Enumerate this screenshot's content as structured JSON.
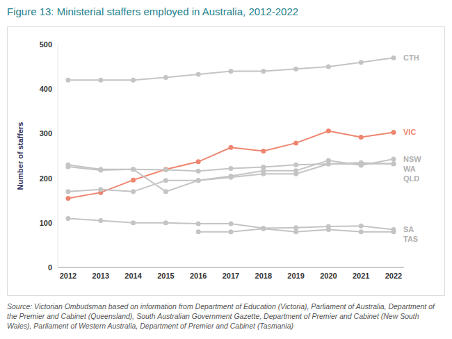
{
  "chart_data": {
    "type": "line",
    "title": "Figure 13: Ministerial staffers employed in Australia, 2012-2022",
    "y_label": "Number of staffers",
    "source": "Source: Victorian Ombudsman based on information from Department of Education (Victoria), Parliament of Australia, Department of the Premier and Cabinet (Queensland), South Australian Government Gazette, Department of Premier and Cabinet (New South Wales), Parliament of Western Australia, Department of Premier and Cabinet (Tasmania)",
    "categories": [
      "2012",
      "2013",
      "2014",
      "2015",
      "2016",
      "2017",
      "2018",
      "2019",
      "2020",
      "2021",
      "2022"
    ],
    "series": [
      {
        "name": "CTH",
        "color": "#c4c4c4",
        "values": [
          420,
          420,
          420,
          426,
          433,
          440,
          440,
          445,
          450,
          460,
          470
        ]
      },
      {
        "name": "VIC",
        "color": "#ef8570",
        "values": [
          155,
          168,
          196,
          220,
          237,
          269,
          261,
          279,
          306,
          292,
          303
        ]
      },
      {
        "name": "NSW",
        "color": "#c4c4c4",
        "values": [
          226,
          218,
          220,
          170,
          195,
          205,
          217,
          217,
          240,
          229,
          243
        ]
      },
      {
        "name": "WA",
        "color": "#c4c4c4",
        "values": [
          230,
          220,
          220,
          219,
          216,
          222,
          225,
          230,
          232,
          232,
          233
        ]
      },
      {
        "name": "QLD",
        "color": "#c4c4c4",
        "values": [
          170,
          175,
          170,
          195,
          195,
          202,
          210,
          210,
          232,
          235,
          232
        ]
      },
      {
        "name": "SA",
        "color": "#c4c4c4",
        "values": [
          110,
          105,
          100,
          100,
          98,
          98,
          88,
          89,
          92,
          93,
          85
        ]
      },
      {
        "name": "TAS",
        "color": "#c4c4c4",
        "values": [
          null,
          null,
          null,
          null,
          80,
          80,
          87,
          80,
          85,
          80,
          80
        ]
      }
    ],
    "ylim": [
      0,
      500
    ],
    "yticks": [
      0,
      100,
      200,
      300,
      400,
      500
    ],
    "grid": false,
    "marker": "circle",
    "line_style": "solid"
  }
}
